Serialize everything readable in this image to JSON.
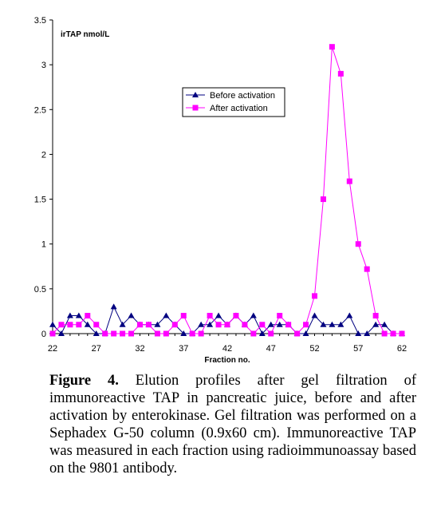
{
  "chart_data": {
    "type": "line",
    "xlabel": "Fraction no.",
    "ylabel": "irTAP nmol/L",
    "xlim": [
      22,
      62
    ],
    "ylim": [
      0,
      3.5
    ],
    "x_ticks": [
      "22",
      "27",
      "32",
      "37",
      "42",
      "47",
      "52",
      "57",
      "62"
    ],
    "y_ticks": [
      "0",
      "0.5",
      "1",
      "1.5",
      "2",
      "2.5",
      "3",
      "3.5"
    ],
    "legend_position": "top-center",
    "grid": false,
    "series": [
      {
        "name": "Before activation",
        "color": "#000080",
        "marker": "triangle",
        "x": [
          22,
          23,
          24,
          25,
          26,
          27,
          28,
          29,
          30,
          31,
          32,
          33,
          34,
          35,
          36,
          37,
          38,
          39,
          40,
          41,
          42,
          43,
          44,
          45,
          46,
          47,
          48,
          49,
          50,
          51,
          52,
          53,
          54,
          55,
          56,
          57,
          58,
          59,
          60,
          61,
          62
        ],
        "y": [
          0.1,
          0,
          0.2,
          0.2,
          0.1,
          0,
          0,
          0.3,
          0.1,
          0.2,
          0.1,
          0.1,
          0.1,
          0.2,
          0.1,
          0,
          0,
          0.1,
          0.1,
          0.2,
          0.1,
          0.2,
          0.1,
          0.2,
          0,
          0.1,
          0.1,
          0.1,
          0,
          0,
          0.2,
          0.1,
          0.1,
          0.1,
          0.2,
          0,
          0,
          0.1,
          0.1,
          0,
          0
        ]
      },
      {
        "name": "After activation",
        "color": "#ff00ff",
        "marker": "square",
        "x": [
          22,
          23,
          24,
          25,
          26,
          27,
          28,
          29,
          30,
          31,
          32,
          33,
          34,
          35,
          36,
          37,
          38,
          39,
          40,
          41,
          42,
          43,
          44,
          45,
          46,
          47,
          48,
          49,
          50,
          51,
          52,
          53,
          54,
          55,
          56,
          57,
          58,
          59,
          60,
          61,
          62
        ],
        "y": [
          0,
          0.1,
          0.1,
          0.1,
          0.2,
          0.1,
          0,
          0,
          0,
          0,
          0.1,
          0.1,
          0,
          0,
          0.1,
          0.2,
          0,
          0,
          0.2,
          0.1,
          0.1,
          0.2,
          0.1,
          0,
          0.1,
          0,
          0.2,
          0.1,
          0,
          0.1,
          0.42,
          1.5,
          3.2,
          2.9,
          1.7,
          1.0,
          0.72,
          0.2,
          0,
          0,
          0
        ]
      }
    ]
  },
  "caption": {
    "label": "Figure 4.",
    "text": " Elution profiles after gel filtration of immunoreactive TAP in pancreatic juice, before and after activation by enterokinase. Gel filtration was performed on a Sephadex G-50 column (0.9x60 cm). Immunoreactive TAP was measured in each fraction using radioimmunoassay based on the 9801 antibody."
  }
}
